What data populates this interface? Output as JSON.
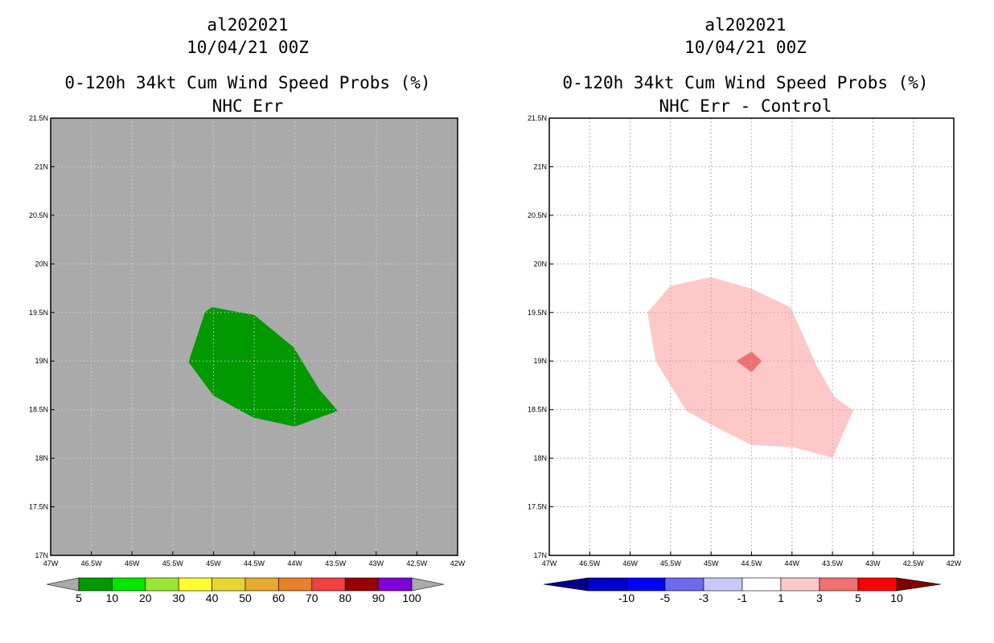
{
  "chart_data": [
    {
      "type": "map-contour",
      "title_lines": [
        "al202021",
        "10/04/21 00Z",
        "0-120h 34kt Cum Wind Speed Probs (%)",
        "NHC Err"
      ],
      "xlim": [
        -47,
        -42
      ],
      "ylim": [
        17,
        21.5
      ],
      "x_ticks": [
        -47,
        -46.5,
        -46,
        -45.5,
        -45,
        -44.5,
        -44,
        -43.5,
        -43,
        -42.5,
        -42
      ],
      "x_tick_labels": [
        "47W",
        "46.5W",
        "46W",
        "45.5W",
        "45W",
        "44.5W",
        "44W",
        "43.5W",
        "43W",
        "42.5W",
        "42W"
      ],
      "y_ticks": [
        17,
        17.5,
        18,
        18.5,
        19,
        19.5,
        20,
        20.5,
        21,
        21.5
      ],
      "y_tick_labels": [
        "17N",
        "17.5N",
        "18N",
        "18.5N",
        "19N",
        "19.5N",
        "20N",
        "20.5N",
        "21N",
        "21.5N"
      ],
      "background_color": "#aaaaaa",
      "grid_color": "#cccccc",
      "regions": [
        {
          "label": "5-10",
          "color": "#009900",
          "points": [
            [
              -45.1,
              19.5
            ],
            [
              -45.02,
              19.55
            ],
            [
              -44.5,
              19.47
            ],
            [
              -44.02,
              19.14
            ],
            [
              -43.7,
              18.7
            ],
            [
              -43.48,
              18.49
            ],
            [
              -44.0,
              18.33
            ],
            [
              -44.5,
              18.42
            ],
            [
              -44.68,
              18.5
            ],
            [
              -45.0,
              18.65
            ],
            [
              -45.3,
              18.99
            ]
          ]
        }
      ],
      "colorbar": {
        "labels": [
          "5",
          "10",
          "20",
          "30",
          "40",
          "50",
          "60",
          "70",
          "80",
          "90",
          "100"
        ],
        "colors": [
          "#009900",
          "#00e600",
          "#99e633",
          "#ffff33",
          "#e6d633",
          "#e6aa33",
          "#e6802b",
          "#f04040",
          "#990000",
          "#8000d9"
        ],
        "end_color": "#aaaaaa"
      }
    },
    {
      "type": "map-contour",
      "title_lines": [
        "al202021",
        "10/04/21 00Z",
        "0-120h 34kt Cum Wind Speed Probs (%)",
        "NHC Err - Control"
      ],
      "xlim": [
        -47,
        -42
      ],
      "ylim": [
        17,
        21.5
      ],
      "x_ticks": [
        -47,
        -46.5,
        -46,
        -45.5,
        -45,
        -44.5,
        -44,
        -43.5,
        -43,
        -42.5,
        -42
      ],
      "x_tick_labels": [
        "47W",
        "46.5W",
        "46W",
        "45.5W",
        "45W",
        "44.5W",
        "44W",
        "43.5W",
        "43W",
        "42.5W",
        "42W"
      ],
      "y_ticks": [
        17,
        17.5,
        18,
        18.5,
        19,
        19.5,
        20,
        20.5,
        21,
        21.5
      ],
      "y_tick_labels": [
        "17N",
        "17.5N",
        "18N",
        "18.5N",
        "19N",
        "19.5N",
        "20N",
        "20.5N",
        "21N",
        "21.5N"
      ],
      "background_color": "#ffffff",
      "grid_color": "#aaaaaa",
      "regions": [
        {
          "label": "1-3",
          "color": "#ffc8c8",
          "points": [
            [
              -45.78,
              19.5
            ],
            [
              -45.5,
              19.77
            ],
            [
              -45.0,
              19.86
            ],
            [
              -44.5,
              19.74
            ],
            [
              -44.02,
              19.55
            ],
            [
              -43.7,
              18.95
            ],
            [
              -43.48,
              18.63
            ],
            [
              -43.25,
              18.49
            ],
            [
              -43.5,
              18.01
            ],
            [
              -44.0,
              18.12
            ],
            [
              -44.5,
              18.14
            ],
            [
              -45.0,
              18.35
            ],
            [
              -45.3,
              18.49
            ],
            [
              -45.68,
              19.0
            ]
          ]
        },
        {
          "label": "3-5",
          "color": "#f07070",
          "points": [
            [
              -44.68,
              19.0
            ],
            [
              -44.5,
              19.09
            ],
            [
              -44.38,
              19.0
            ],
            [
              -44.5,
              18.89
            ]
          ]
        }
      ],
      "colorbar": {
        "labels": [
          "-10",
          "-5",
          "-3",
          "-1",
          "1",
          "3",
          "5",
          "10"
        ],
        "colors": [
          "#0000cc",
          "#0000ff",
          "#6b6bf0",
          "#c8c8ff",
          "#ffffff",
          "#ffc8c8",
          "#f07070",
          "#ff0000"
        ],
        "left_end_color": "#00008b",
        "right_end_color": "#800000"
      }
    }
  ]
}
